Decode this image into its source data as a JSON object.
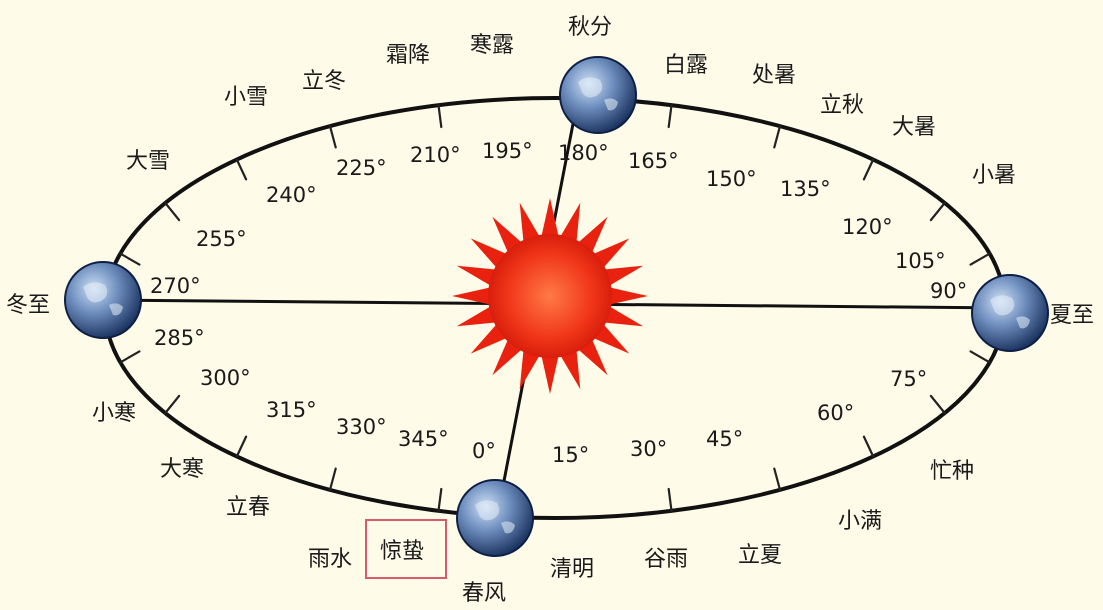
{
  "diagram": {
    "solar_terms": [
      {
        "key": "chunfen",
        "label": "春风"
      },
      {
        "key": "qingming",
        "label": "清明"
      },
      {
        "key": "guyu",
        "label": "谷雨"
      },
      {
        "key": "lixia",
        "label": "立夏"
      },
      {
        "key": "xiaoman",
        "label": "小满"
      },
      {
        "key": "mangzhong",
        "label": "忙种"
      },
      {
        "key": "xiazhi",
        "label": "夏至"
      },
      {
        "key": "xiaoshu",
        "label": "小暑"
      },
      {
        "key": "dashu",
        "label": "大暑"
      },
      {
        "key": "liqiu",
        "label": "立秋"
      },
      {
        "key": "chushu",
        "label": "处暑"
      },
      {
        "key": "bailu",
        "label": "白露"
      },
      {
        "key": "qiufen",
        "label": "秋分"
      },
      {
        "key": "hanlu",
        "label": "寒露"
      },
      {
        "key": "shuangjiang",
        "label": "霜降"
      },
      {
        "key": "lidong",
        "label": "立冬"
      },
      {
        "key": "xiaoxue",
        "label": "小雪"
      },
      {
        "key": "daxue",
        "label": "大雪"
      },
      {
        "key": "dongzhi",
        "label": "冬至"
      },
      {
        "key": "xiaohan",
        "label": "小寒"
      },
      {
        "key": "dahan",
        "label": "大寒"
      },
      {
        "key": "lichun",
        "label": "立春"
      },
      {
        "key": "yushui",
        "label": "雨水"
      },
      {
        "key": "jingzhe",
        "label": "惊蛰"
      }
    ],
    "degrees": [
      "0°",
      "15°",
      "30°",
      "45°",
      "60°",
      "75°",
      "90°",
      "105°",
      "120°",
      "135°",
      "150°",
      "165°",
      "180°",
      "195°",
      "210°",
      "225°",
      "240°",
      "255°",
      "270°",
      "285°",
      "300°",
      "315°",
      "330°",
      "345°"
    ],
    "highlighted_term": "惊蛰",
    "colors": {
      "orbit": "#111111",
      "sun": "#e8220f",
      "sun_core": "#ff6a3a",
      "highlight_box": "#d95a6a",
      "earth_dark": "#1b3a6e",
      "earth_light": "#a9c4e8"
    }
  }
}
